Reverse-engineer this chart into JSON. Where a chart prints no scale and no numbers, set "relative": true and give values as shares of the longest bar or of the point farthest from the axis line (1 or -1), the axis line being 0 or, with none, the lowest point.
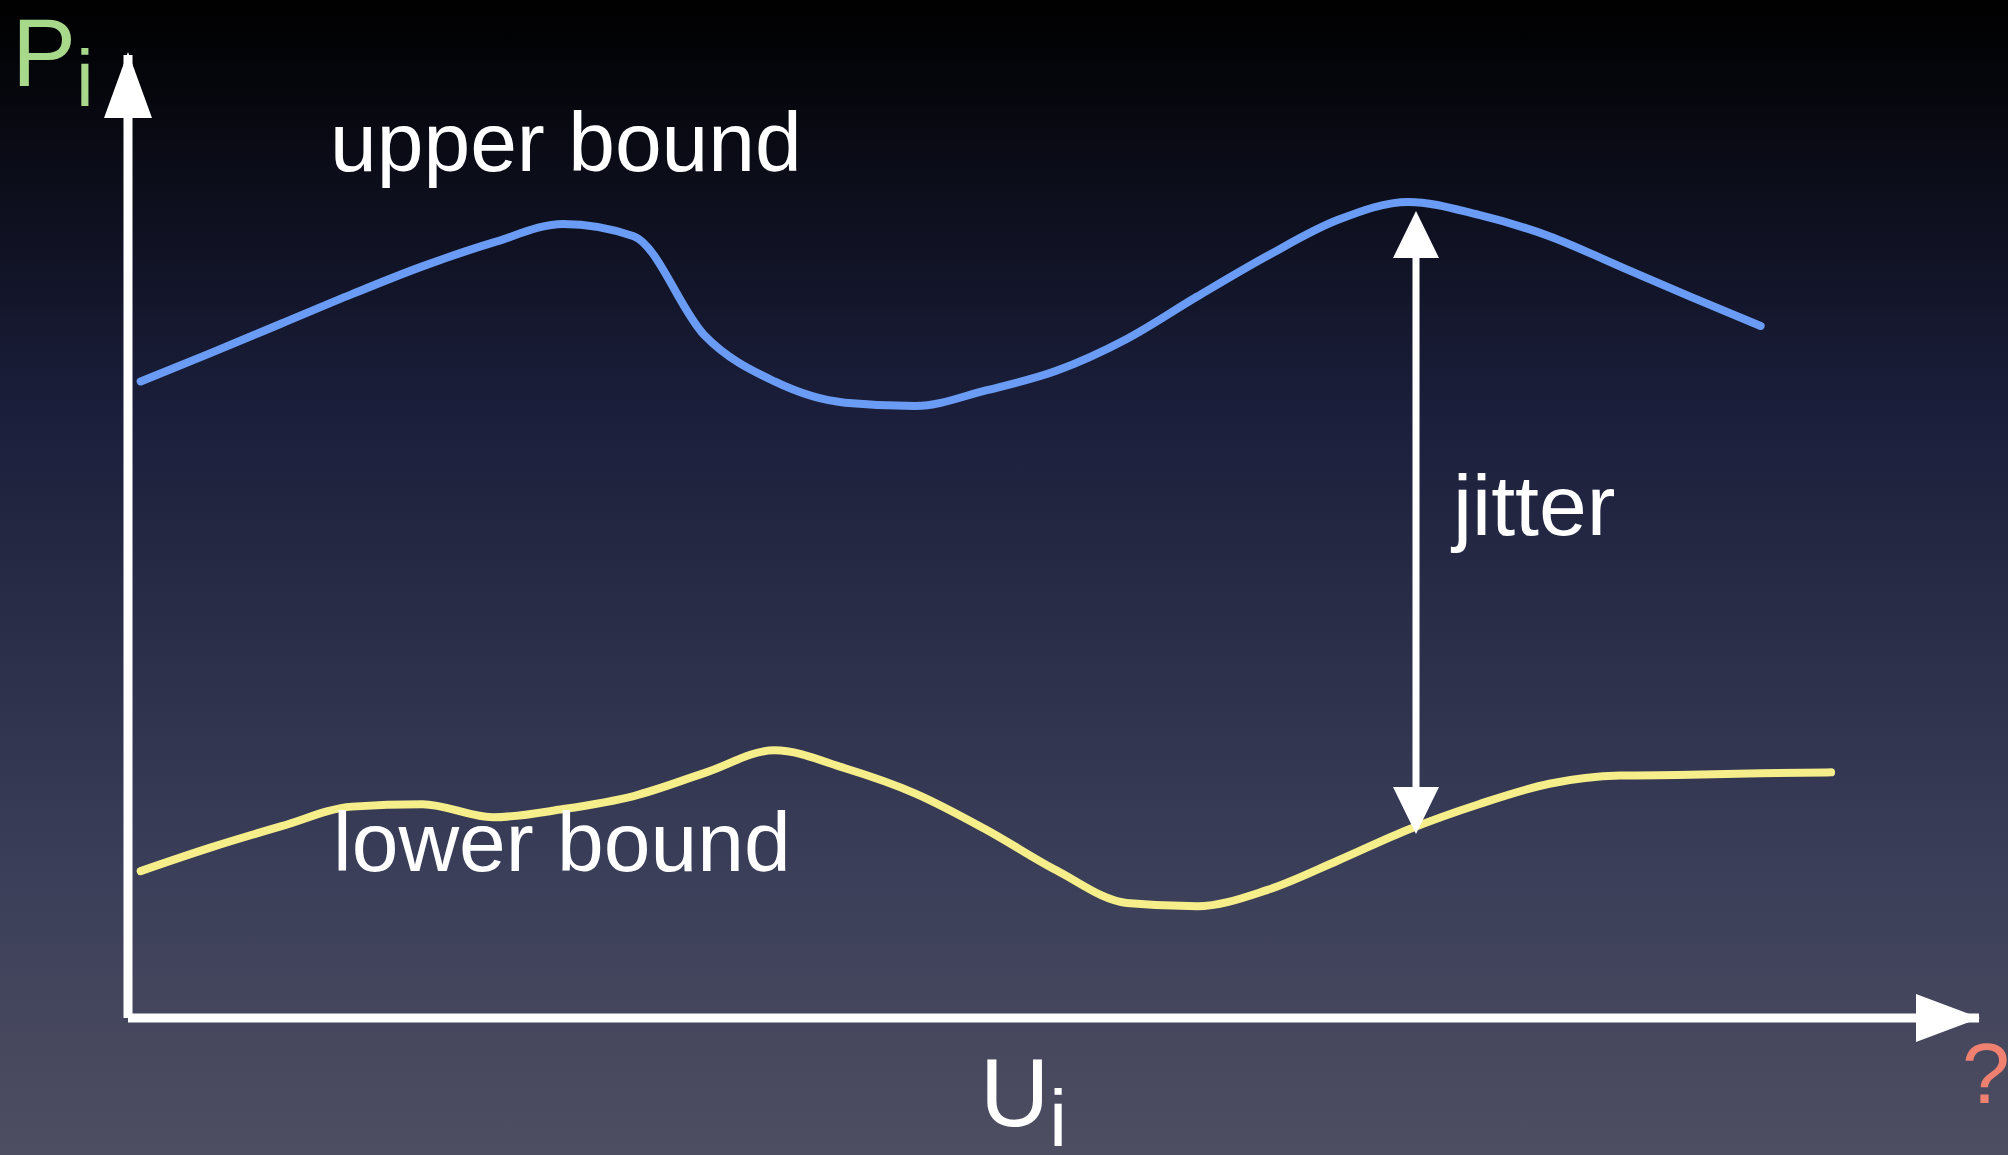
{
  "chart_data": {
    "type": "line",
    "relative": true,
    "xlabel": "U$_{i}$",
    "ylabel": "P$_{i}$",
    "categories": [
      null,
      null,
      null,
      null,
      null,
      null,
      null,
      null,
      null,
      null,
      null,
      null,
      null,
      null,
      null,
      null,
      null,
      null,
      null,
      null,
      null,
      null,
      null,
      null,
      null
    ],
    "series": [
      {
        "name": "upper bound",
        "color": "#6b9cf5",
        "values": [
          0.78,
          0.815,
          0.851,
          0.887,
          0.921,
          0.95,
          0.973,
          0.958,
          0.837,
          0.78,
          0.754,
          0.75,
          0.769,
          0.793,
          0.832,
          0.884,
          0.934,
          0.978,
          1,
          0.984,
          0.958,
          0.921,
          0.884,
          0.848,
          null
        ]
      },
      {
        "name": "lower bound",
        "color": "#f5ee8a",
        "values": [
          0.18,
          0.209,
          0.235,
          0.259,
          0.262,
          0.246,
          0.256,
          0.272,
          0.3,
          0.328,
          0.306,
          0.275,
          0.231,
          0.181,
          0.141,
          0.137,
          0.157,
          0.193,
          0.231,
          0.262,
          0.287,
          0.297,
          0.298,
          0.3,
          0.301
        ]
      }
    ],
    "annotations": [
      "jitter",
      "?"
    ]
  }
}
